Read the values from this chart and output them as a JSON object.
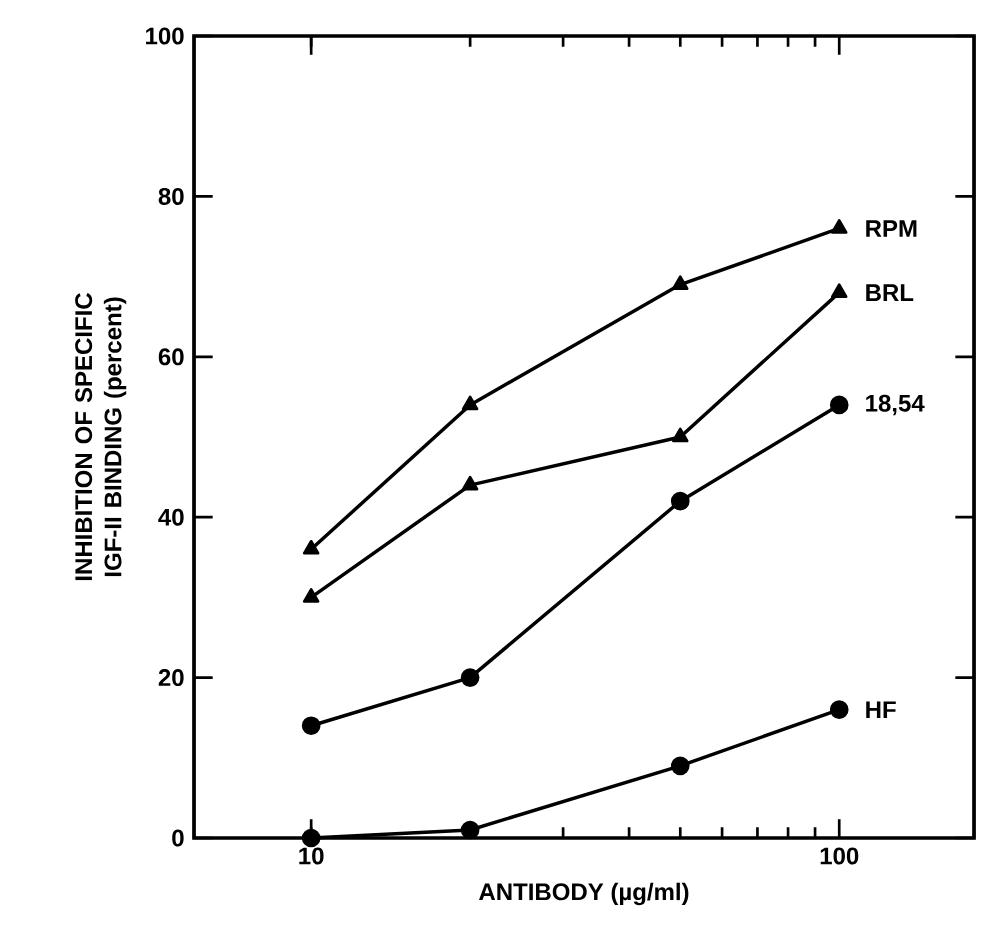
{
  "chart_data": {
    "type": "line",
    "xlabel": "ANTIBODY (µg/ml)",
    "ylabel": "INHIBITION OF SPECIFIC IGF-II BINDING (percent)",
    "log": "x",
    "xlim": [
      6,
      180
    ],
    "xticks": [
      10,
      100
    ],
    "ylim": [
      0,
      100
    ],
    "yticks": [
      0,
      20,
      40,
      60,
      80,
      100
    ],
    "grid": false,
    "x": [
      10,
      20,
      50,
      100
    ],
    "series": [
      {
        "name": "RPM",
        "color": "#000000",
        "marker": "triangle",
        "values": [
          36,
          54,
          69,
          76
        ]
      },
      {
        "name": "BRL",
        "color": "#000000",
        "marker": "triangle",
        "values": [
          30,
          44,
          50,
          68
        ]
      },
      {
        "name": "18,54",
        "color": "#000000",
        "marker": "circle",
        "values": [
          14,
          20,
          42,
          54
        ]
      },
      {
        "name": "HF",
        "color": "#000000",
        "marker": "circle",
        "values": [
          0,
          1,
          9,
          16
        ]
      }
    ]
  }
}
